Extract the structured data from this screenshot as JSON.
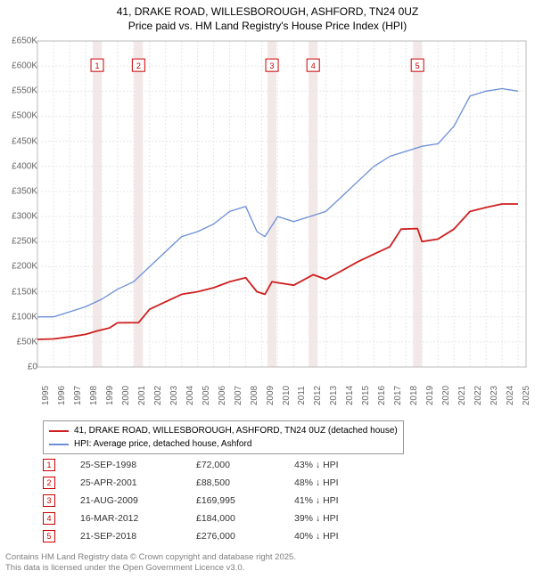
{
  "title_line1": "41, DRAKE ROAD, WILLESBOROUGH, ASHFORD, TN24 0UZ",
  "title_line2": "Price paid vs. HM Land Registry's House Price Index (HPI)",
  "chart": {
    "type": "line",
    "background_color": "#ffffff",
    "grid_color": "#e6e6e6",
    "grid_dash": "2,2",
    "xlim": [
      1995,
      2025.5
    ],
    "ylim": [
      0,
      650000
    ],
    "ytick_step": 50000,
    "ytick_prefix": "£",
    "ytick_suffix": "K",
    "xticks": [
      1995,
      1996,
      1997,
      1998,
      1999,
      2000,
      2001,
      2002,
      2003,
      2004,
      2005,
      2006,
      2007,
      2008,
      2009,
      2010,
      2011,
      2012,
      2013,
      2014,
      2015,
      2016,
      2017,
      2018,
      2019,
      2020,
      2021,
      2022,
      2023,
      2024,
      2025
    ],
    "series": [
      {
        "name": "hpi",
        "color": "#6a8fd6",
        "width": 1.3,
        "points": [
          [
            1995,
            100000
          ],
          [
            1996,
            100000
          ],
          [
            1997,
            110000
          ],
          [
            1998,
            120000
          ],
          [
            1999,
            135000
          ],
          [
            2000,
            155000
          ],
          [
            2001,
            170000
          ],
          [
            2002,
            200000
          ],
          [
            2003,
            230000
          ],
          [
            2004,
            260000
          ],
          [
            2005,
            270000
          ],
          [
            2006,
            285000
          ],
          [
            2007,
            310000
          ],
          [
            2008,
            320000
          ],
          [
            2008.7,
            270000
          ],
          [
            2009.2,
            260000
          ],
          [
            2010,
            300000
          ],
          [
            2011,
            290000
          ],
          [
            2012,
            300000
          ],
          [
            2013,
            310000
          ],
          [
            2014,
            340000
          ],
          [
            2015,
            370000
          ],
          [
            2016,
            400000
          ],
          [
            2017,
            420000
          ],
          [
            2018,
            430000
          ],
          [
            2019,
            440000
          ],
          [
            2020,
            445000
          ],
          [
            2021,
            480000
          ],
          [
            2022,
            540000
          ],
          [
            2023,
            550000
          ],
          [
            2024,
            555000
          ],
          [
            2025,
            550000
          ]
        ]
      },
      {
        "name": "property",
        "color": "#cf1f1f",
        "width": 1.8,
        "points": [
          [
            1995,
            55000
          ],
          [
            1996,
            56000
          ],
          [
            1997,
            60000
          ],
          [
            1998,
            65000
          ],
          [
            1998.73,
            72000
          ],
          [
            1999.5,
            78000
          ],
          [
            2000,
            88000
          ],
          [
            2001.31,
            88500
          ],
          [
            2002,
            115000
          ],
          [
            2003,
            130000
          ],
          [
            2004,
            145000
          ],
          [
            2005,
            150000
          ],
          [
            2006,
            158000
          ],
          [
            2007,
            170000
          ],
          [
            2008,
            178000
          ],
          [
            2008.7,
            150000
          ],
          [
            2009.2,
            145000
          ],
          [
            2009.64,
            169995
          ],
          [
            2010,
            168000
          ],
          [
            2011,
            163000
          ],
          [
            2012.21,
            184000
          ],
          [
            2013,
            175000
          ],
          [
            2014,
            192000
          ],
          [
            2015,
            210000
          ],
          [
            2016,
            225000
          ],
          [
            2017,
            240000
          ],
          [
            2017.7,
            275000
          ],
          [
            2018.72,
            276000
          ],
          [
            2019,
            250000
          ],
          [
            2020,
            255000
          ],
          [
            2021,
            275000
          ],
          [
            2022,
            310000
          ],
          [
            2023,
            318000
          ],
          [
            2024,
            325000
          ],
          [
            2025,
            325000
          ]
        ]
      }
    ],
    "markers": [
      {
        "n": "1",
        "x": 1998.73,
        "label_y": 600000,
        "date": "25-SEP-1998",
        "price": "£72,000",
        "delta": "43% ↓ HPI"
      },
      {
        "n": "2",
        "x": 2001.31,
        "label_y": 600000,
        "date": "25-APR-2001",
        "price": "£88,500",
        "delta": "48% ↓ HPI"
      },
      {
        "n": "3",
        "x": 2009.64,
        "label_y": 600000,
        "date": "21-AUG-2009",
        "price": "£169,995",
        "delta": "41% ↓ HPI"
      },
      {
        "n": "4",
        "x": 2012.21,
        "label_y": 600000,
        "date": "16-MAR-2012",
        "price": "£184,000",
        "delta": "39% ↓ HPI"
      },
      {
        "n": "5",
        "x": 2018.72,
        "label_y": 600000,
        "date": "21-SEP-2018",
        "price": "£276,000",
        "delta": "40% ↓ HPI"
      }
    ],
    "marker_band_color": "#f3e8e8",
    "marker_box_border": "#cc0000",
    "marker_box_text": "#cc0000"
  },
  "legend": {
    "items": [
      {
        "color": "#cf1f1f",
        "label": "41, DRAKE ROAD, WILLESBOROUGH, ASHFORD, TN24 0UZ (detached house)"
      },
      {
        "color": "#6a8fd6",
        "label": "HPI: Average price, detached house, Ashford"
      }
    ]
  },
  "footer_line1": "Contains HM Land Registry data © Crown copyright and database right 2025.",
  "footer_line2": "This data is licensed under the Open Government Licence v3.0."
}
